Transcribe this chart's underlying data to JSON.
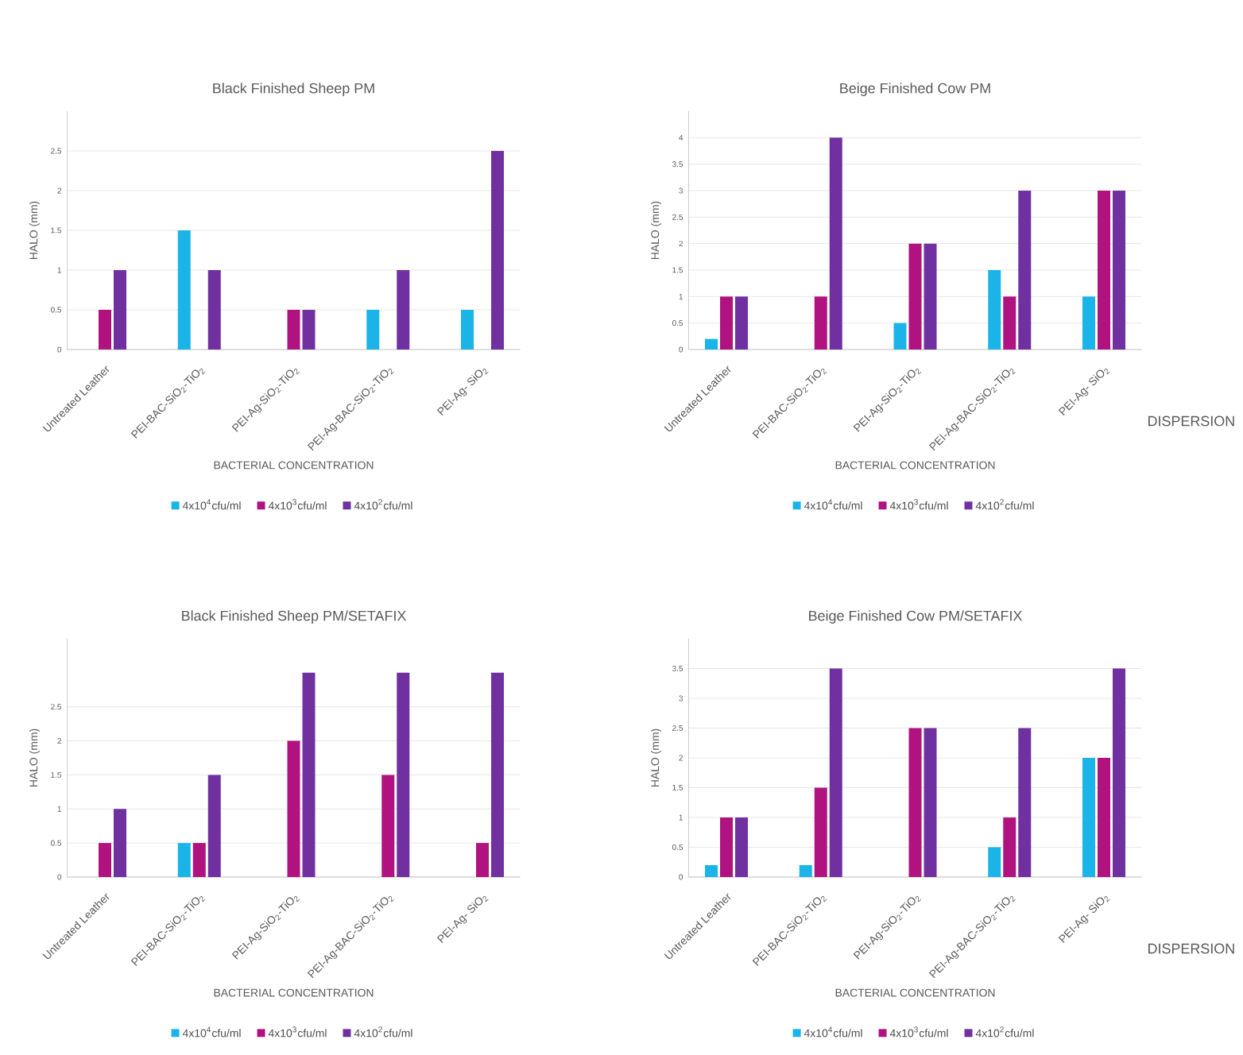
{
  "chart_data": [
    {
      "type": "bar",
      "title": "Black Finished Sheep PM",
      "xlabel": "BACTERIAL CONCENTRATION",
      "ylabel": "HALO (mm)",
      "categories": [
        "Untreated Leather",
        "PEI-BAC-SiO$_{2}$-TiO$_{2}$",
        "PEI-Ag-SiO$_{2}$-TiO$_{2}$",
        "PEI-Ag-BAC-SiO$_{2}$-TiO$_{2}$",
        "PEI-Ag- SiO$_{2}$"
      ],
      "series": [
        {
          "name": "4x10$^{4}$cfu/ml",
          "color": "#1ab4e8",
          "values": [
            0,
            1.5,
            0,
            0.5,
            0.5
          ]
        },
        {
          "name": "4x10$^{3}$cfu/ml",
          "color": "#b0137f",
          "values": [
            0.5,
            0,
            0.5,
            0,
            0
          ]
        },
        {
          "name": "4x10$^{2}$cfu/ml",
          "color": "#7030a0",
          "values": [
            1,
            1,
            0.5,
            1,
            2.5
          ]
        }
      ],
      "ylim": [
        0,
        3
      ],
      "yticks": [
        0,
        0.5,
        1,
        1.5,
        2,
        2.5
      ],
      "grid": "y",
      "legend": "bottom"
    },
    {
      "type": "bar",
      "title": "Beige Finished Cow PM",
      "xlabel": "BACTERIAL CONCENTRATION",
      "ylabel": "HALO (mm)",
      "categories": [
        "Untreated Leather",
        "PEI-BAC-SiO$_{2}$-TiO$_{2}$",
        "PEI-Ag-SiO$_{2}$-TiO$_{2}$",
        "PEI-Ag-BAC-SiO$_{2}$-TiO$_{2}$",
        "PEI-Ag- SiO$_{2}$"
      ],
      "series": [
        {
          "name": "4x10$^{4}$cfu/ml",
          "color": "#1ab4e8",
          "values": [
            0.2,
            0,
            0.5,
            1.5,
            1
          ]
        },
        {
          "name": "4x10$^{3}$cfu/ml",
          "color": "#b0137f",
          "values": [
            1,
            1,
            2,
            1,
            3
          ]
        },
        {
          "name": "4x10$^{2}$cfu/ml",
          "color": "#7030a0",
          "values": [
            1,
            4,
            2,
            3,
            3
          ]
        }
      ],
      "ylim": [
        0,
        4.5
      ],
      "yticks": [
        0,
        0.5,
        1,
        1.5,
        2,
        2.5,
        3,
        3.5,
        4
      ],
      "grid": "y",
      "legend": "bottom",
      "annotations": [
        "DISPERSION"
      ]
    },
    {
      "type": "bar",
      "title": "Black Finished Sheep PM/SETAFIX",
      "xlabel": "BACTERIAL CONCENTRATION",
      "ylabel": "HALO (mm)",
      "categories": [
        "Untreated Leather",
        "PEI-BAC-SiO$_{2}$-TiO$_{2}$",
        "PEI-Ag-SiO$_{2}$-TiO$_{2}$",
        "PEI-Ag-BAC-SiO$_{2}$-TiO$_{2}$",
        "PEI-Ag- SiO$_{2}$"
      ],
      "series": [
        {
          "name": "4x10$^{4}$cfu/ml",
          "color": "#1ab4e8",
          "values": [
            0,
            0.5,
            0,
            0,
            0
          ]
        },
        {
          "name": "4x10$^{3}$cfu/ml",
          "color": "#b0137f",
          "values": [
            0.5,
            0.5,
            2,
            1.5,
            0.5
          ]
        },
        {
          "name": "4x10$^{2}$cfu/ml",
          "color": "#7030a0",
          "values": [
            1,
            1.5,
            3,
            3,
            3
          ]
        }
      ],
      "ylim": [
        0,
        3.5
      ],
      "yticks": [
        0,
        0.5,
        1,
        1.5,
        2,
        2.5
      ],
      "grid": "y",
      "legend": "bottom"
    },
    {
      "type": "bar",
      "title": "Beige Finished Cow PM/SETAFIX",
      "xlabel": "BACTERIAL CONCENTRATION",
      "ylabel": "HALO (mm)",
      "categories": [
        "Untreated Leather",
        "PEI-BAC-SiO$_{2}$-TiO$_{2}$",
        "PEI-Ag-SiO$_{2}$-TiO$_{2}$",
        "PEI-Ag-BAC-SiO$_{2}$-TiO$_{2}$",
        "PEI-Ag- SiO$_{2}$"
      ],
      "series": [
        {
          "name": "4x10$^{4}$cfu/ml",
          "color": "#1ab4e8",
          "values": [
            0.2,
            0.2,
            0,
            0.5,
            2
          ]
        },
        {
          "name": "4x10$^{3}$cfu/ml",
          "color": "#b0137f",
          "values": [
            1,
            1.5,
            2.5,
            1,
            2
          ]
        },
        {
          "name": "4x10$^{2}$cfu/ml",
          "color": "#7030a0",
          "values": [
            1,
            3.5,
            2.5,
            2.5,
            3.5
          ]
        }
      ],
      "ylim": [
        0,
        4
      ],
      "yticks": [
        0,
        0.5,
        1,
        1.5,
        2,
        2.5,
        3,
        3.5
      ],
      "grid": "y",
      "legend": "bottom",
      "annotations": [
        "DISPERSION"
      ]
    }
  ]
}
